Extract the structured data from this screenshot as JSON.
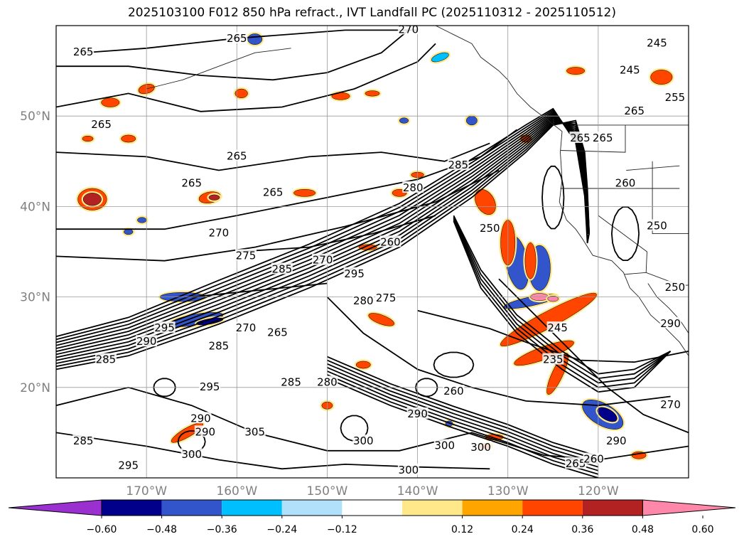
{
  "title": "2025103100 F012 850 hPa refract., IVT Landfall PC (2025110312 - 2025110512)",
  "map": {
    "lon_range": [
      -180,
      -110
    ],
    "lat_range": [
      10,
      60
    ],
    "grid": true,
    "lat_ticks": [
      {
        "value": 20,
        "label": "20°N"
      },
      {
        "value": 30,
        "label": "30°N"
      },
      {
        "value": 40,
        "label": "40°N"
      },
      {
        "value": 50,
        "label": "50°N"
      }
    ],
    "lon_ticks": [
      {
        "value": -170,
        "label": "170°W"
      },
      {
        "value": -160,
        "label": "160°W"
      },
      {
        "value": -150,
        "label": "150°W"
      },
      {
        "value": -140,
        "label": "140°W"
      },
      {
        "value": -130,
        "label": "130°W"
      },
      {
        "value": -120,
        "label": "120°W"
      }
    ],
    "contour_labels": [
      {
        "lon": -177,
        "lat": 57.0,
        "text": "265"
      },
      {
        "lon": -175,
        "lat": 49.0,
        "text": "265"
      },
      {
        "lon": -160,
        "lat": 58.5,
        "text": "265"
      },
      {
        "lon": -160,
        "lat": 45.5,
        "text": "265"
      },
      {
        "lon": -156,
        "lat": 41.5,
        "text": "265"
      },
      {
        "lon": -165,
        "lat": 42.5,
        "text": "265"
      },
      {
        "lon": -141,
        "lat": 59.5,
        "text": "270"
      },
      {
        "lon": -162,
        "lat": 37.0,
        "text": "270"
      },
      {
        "lon": -159,
        "lat": 34.5,
        "text": "275"
      },
      {
        "lon": -155,
        "lat": 33.0,
        "text": "285"
      },
      {
        "lon": -147,
        "lat": 32.5,
        "text": "295"
      },
      {
        "lon": -150.5,
        "lat": 34.0,
        "text": "270"
      },
      {
        "lon": -143,
        "lat": 36.0,
        "text": "260"
      },
      {
        "lon": -146,
        "lat": 29.5,
        "text": "280"
      },
      {
        "lon": -143.5,
        "lat": 29.8,
        "text": "275"
      },
      {
        "lon": -140.5,
        "lat": 42.0,
        "text": "280"
      },
      {
        "lon": -135.5,
        "lat": 44.5,
        "text": "285"
      },
      {
        "lon": -132,
        "lat": 37.5,
        "text": "250"
      },
      {
        "lon": -113.5,
        "lat": 58.0,
        "text": "245"
      },
      {
        "lon": -116.5,
        "lat": 55.0,
        "text": "245"
      },
      {
        "lon": -111.5,
        "lat": 52.0,
        "text": "255"
      },
      {
        "lon": -116,
        "lat": 50.5,
        "text": "265"
      },
      {
        "lon": -119.5,
        "lat": 47.5,
        "text": "265"
      },
      {
        "lon": -117,
        "lat": 42.5,
        "text": "260"
      },
      {
        "lon": -113.5,
        "lat": 37.8,
        "text": "250"
      },
      {
        "lon": -124.5,
        "lat": 26.5,
        "text": "245"
      },
      {
        "lon": -125,
        "lat": 23.0,
        "text": "235"
      },
      {
        "lon": -136,
        "lat": 19.5,
        "text": "260"
      },
      {
        "lon": -140,
        "lat": 17.0,
        "text": "290"
      },
      {
        "lon": -137,
        "lat": 13.5,
        "text": "300"
      },
      {
        "lon": -133,
        "lat": 13.3,
        "text": "300"
      },
      {
        "lon": -141,
        "lat": 10.8,
        "text": "300"
      },
      {
        "lon": -165,
        "lat": 12.5,
        "text": "300"
      },
      {
        "lon": -172,
        "lat": 11.3,
        "text": "295"
      },
      {
        "lon": -177,
        "lat": 14.0,
        "text": "285"
      },
      {
        "lon": -154,
        "lat": 20.5,
        "text": "285"
      },
      {
        "lon": -150,
        "lat": 20.5,
        "text": "280"
      },
      {
        "lon": -159,
        "lat": 26.5,
        "text": "270"
      },
      {
        "lon": -155.5,
        "lat": 26.0,
        "text": "265"
      },
      {
        "lon": -162,
        "lat": 24.5,
        "text": "285"
      },
      {
        "lon": -163,
        "lat": 20.0,
        "text": "295"
      },
      {
        "lon": -168,
        "lat": 26.5,
        "text": "295"
      },
      {
        "lon": -170,
        "lat": 25.0,
        "text": "290"
      },
      {
        "lon": -174.5,
        "lat": 23.0,
        "text": "285"
      },
      {
        "lon": -164,
        "lat": 16.5,
        "text": "290"
      },
      {
        "lon": -158,
        "lat": 15.0,
        "text": "305"
      },
      {
        "lon": -163.5,
        "lat": 15.0,
        "text": "290"
      },
      {
        "lon": -146,
        "lat": 14.0,
        "text": "300"
      },
      {
        "lon": -118,
        "lat": 14.0,
        "text": "290"
      },
      {
        "lon": -122.5,
        "lat": 11.5,
        "text": "265"
      },
      {
        "lon": -120.5,
        "lat": 12.0,
        "text": "260"
      },
      {
        "lon": -112,
        "lat": 18.0,
        "text": "270"
      },
      {
        "lon": -112,
        "lat": 27.0,
        "text": "290"
      },
      {
        "lon": -111.5,
        "lat": 31.0,
        "text": "250"
      },
      {
        "lon": -122,
        "lat": 47.5,
        "text": "265"
      }
    ]
  },
  "colorbar": {
    "ticks": [
      "−0.60",
      "−0.48",
      "−0.36",
      "−0.24",
      "−0.12",
      "0.12",
      "0.24",
      "0.36",
      "0.48",
      "0.60"
    ],
    "colors": [
      "#9b30d0",
      "#00008b",
      "#3355cc",
      "#00bfff",
      "#b0e0fa",
      "#ffffff",
      "#ffe88a",
      "#ffa500",
      "#ff4500",
      "#b22222",
      "#ff88aa"
    ],
    "extend": "both"
  },
  "colors": {
    "contour": "#000000",
    "grid": "#999999",
    "coast": "#222222"
  }
}
